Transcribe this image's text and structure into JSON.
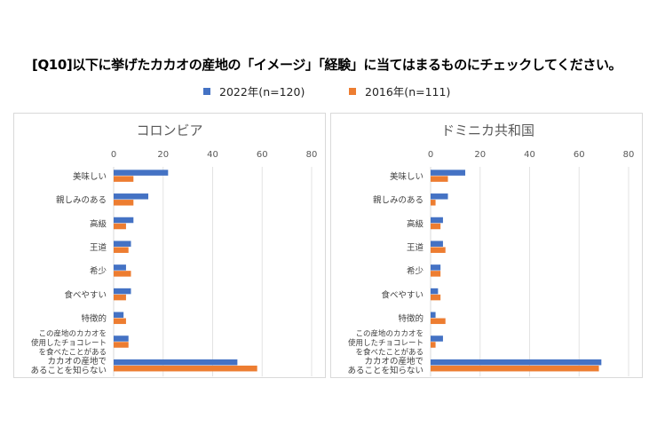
{
  "title": "[Q10]以下に挙げたカカオの産地の「イメージ」「経験」に当てはまるものにチェックしてください。",
  "legend": [
    {
      "label": "2022年(n=120)",
      "color": "#4472c4"
    },
    {
      "label": "2016年(n=111)",
      "color": "#ed7d31"
    }
  ],
  "chart_data": [
    {
      "type": "bar",
      "orientation": "horizontal",
      "title": "コロンビア",
      "categories": [
        "美味しい",
        "親しみのある",
        "高級",
        "王道",
        "希少",
        "食べやすい",
        "特徴的",
        "この産地のカカオを\n使用したチョコレート\nを食べたことがある",
        "カカオの産地で\nあることを知らない"
      ],
      "series": [
        {
          "name": "2022年(n=120)",
          "color": "#4472c4",
          "values": [
            22,
            14,
            8,
            7,
            5,
            7,
            4,
            6,
            50
          ]
        },
        {
          "name": "2016年(n=111)",
          "color": "#ed7d31",
          "values": [
            8,
            8,
            5,
            6,
            7,
            5,
            5,
            6,
            58
          ]
        }
      ],
      "xlim": [
        0,
        80
      ],
      "xticks": [
        0,
        20,
        40,
        60,
        80
      ],
      "xaxis_position": "top",
      "grid": true,
      "legend": "top-center (shared)"
    },
    {
      "type": "bar",
      "orientation": "horizontal",
      "title": "ドミニカ共和国",
      "categories": [
        "美味しい",
        "親しみのある",
        "高級",
        "王道",
        "希少",
        "食べやすい",
        "特徴的",
        "この産地のカカオを\n使用したチョコレート\nを食べたことがある",
        "カカオの産地で\nあることを知らない"
      ],
      "series": [
        {
          "name": "2022年(n=120)",
          "color": "#4472c4",
          "values": [
            14,
            7,
            5,
            5,
            4,
            3,
            2,
            5,
            69
          ]
        },
        {
          "name": "2016年(n=111)",
          "color": "#ed7d31",
          "values": [
            7,
            2,
            4,
            6,
            4,
            4,
            6,
            2,
            68
          ]
        }
      ],
      "xlim": [
        0,
        80
      ],
      "xticks": [
        0,
        20,
        40,
        60,
        80
      ],
      "xaxis_position": "top",
      "grid": true,
      "legend": "top-center (shared)"
    }
  ]
}
